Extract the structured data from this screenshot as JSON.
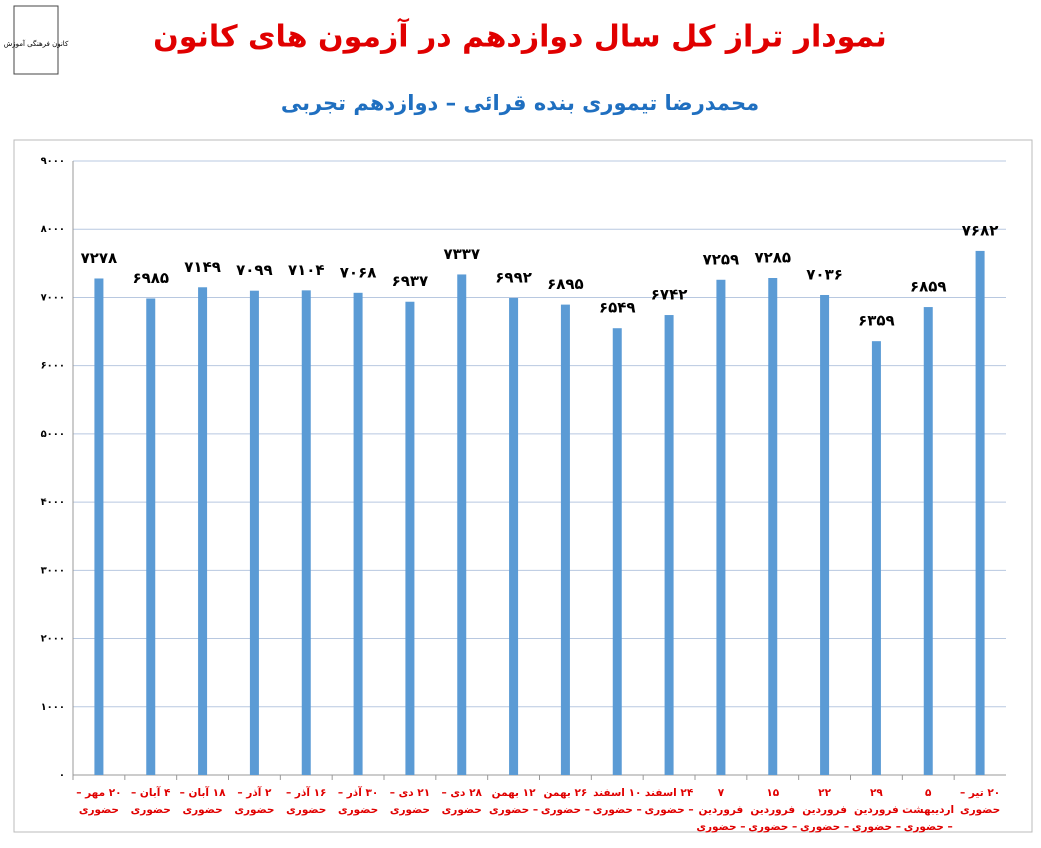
{
  "logo_text": "کانون فرهنگی آموزش",
  "chart_data": {
    "type": "bar",
    "title": "نمودار تراز کل سال دوازدهم در آزمون های کانون",
    "subtitle": "محمدرضا تیموری بنده قرائی – دوازدهم تجربی",
    "categories": [
      "۲۰ مهر – حضوری",
      "۴ آبان – حضوری",
      "۱۸ آبان – حضوری",
      "۲ آذر – حضوری",
      "۱۶ آذر – حضوری",
      "۳۰ آذر – حضوری",
      "۲۱ دی – حضوری",
      "۲۸ دی – حضوری",
      "۱۲ بهمن – حضوری",
      "۲۶ بهمن – حضوری",
      "۱۰ اسفند – حضوری",
      "۲۴ اسفند – حضوری",
      "۷ فروردین – حضوری",
      "۱۵ فروردین – حضوری",
      "۲۲ فروردین – حضوری",
      "۲۹ فروردین – حضوری",
      "۵ اردیبهشت – حضوری",
      "۲۰ تیر – حضوری"
    ],
    "values": [
      7278,
      6985,
      7149,
      7099,
      7104,
      7068,
      6937,
      7337,
      6992,
      6895,
      6549,
      6742,
      7259,
      7285,
      7036,
      6359,
      6859,
      7682
    ],
    "value_labels": [
      "۷۲۷۸",
      "۶۹۸۵",
      "۷۱۴۹",
      "۷۰۹۹",
      "۷۱۰۴",
      "۷۰۶۸",
      "۶۹۳۷",
      "۷۳۳۷",
      "۶۹۹۲",
      "۶۸۹۵",
      "۶۵۴۹",
      "۶۷۴۲",
      "۷۲۵۹",
      "۷۲۸۵",
      "۷۰۳۶",
      "۶۳۵۹",
      "۶۸۵۹",
      "۷۶۸۲"
    ],
    "color": "#5b9bd5",
    "ylim": [
      0,
      9000
    ],
    "yticks": [
      {
        "value": 0,
        "label": "۰"
      },
      {
        "value": 1000,
        "label": "۱۰۰۰"
      },
      {
        "value": 2000,
        "label": "۲۰۰۰"
      },
      {
        "value": 3000,
        "label": "۳۰۰۰"
      },
      {
        "value": 4000,
        "label": "۴۰۰۰"
      },
      {
        "value": 5000,
        "label": "۵۰۰۰"
      },
      {
        "value": 6000,
        "label": "۶۰۰۰"
      },
      {
        "value": 7000,
        "label": "۷۰۰۰"
      },
      {
        "value": 8000,
        "label": "۸۰۰۰"
      },
      {
        "value": 9000,
        "label": "۹۰۰۰"
      }
    ],
    "grid": true
  }
}
